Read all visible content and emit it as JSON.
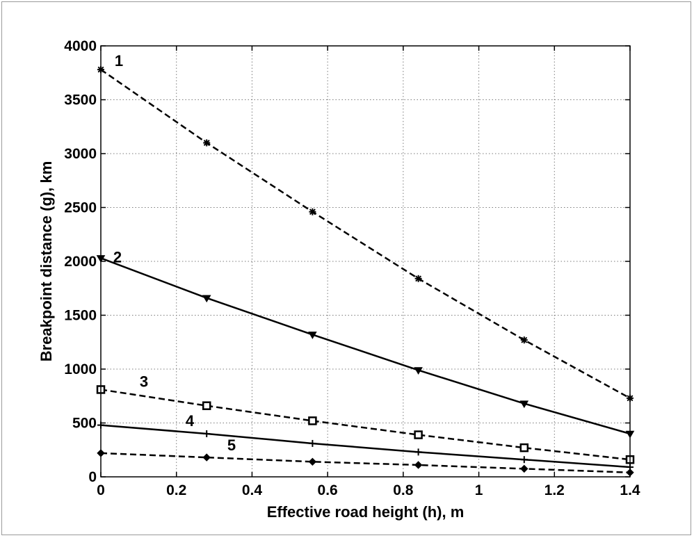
{
  "chart_data": {
    "type": "line",
    "title": "",
    "xlabel": "Effective road height (h), m",
    "ylabel": "Breakpoint distance (g), km",
    "xlim": [
      0,
      1.4
    ],
    "ylim": [
      0,
      4000
    ],
    "xticks": [
      "0",
      "0.2",
      "0.4",
      "0.6",
      "0.8",
      "1",
      "1.2",
      "1.4"
    ],
    "yticks": [
      "0",
      "500",
      "1000",
      "1500",
      "2000",
      "2500",
      "3000",
      "3500",
      "4000"
    ],
    "grid": true,
    "x": [
      0,
      0.28,
      0.56,
      0.84,
      1.12,
      1.4
    ],
    "series": [
      {
        "label": "1",
        "values": [
          3780,
          3100,
          2460,
          1840,
          1270,
          730
        ],
        "style": "dashed",
        "marker": "star"
      },
      {
        "label": "2",
        "values": [
          2030,
          1660,
          1320,
          990,
          680,
          400
        ],
        "style": "solid",
        "marker": "triangle-down"
      },
      {
        "label": "3",
        "values": [
          810,
          660,
          520,
          390,
          270,
          160
        ],
        "style": "dashed",
        "marker": "square"
      },
      {
        "label": "4",
        "values": [
          480,
          400,
          310,
          230,
          160,
          90
        ],
        "style": "solid",
        "marker": "plus"
      },
      {
        "label": "5",
        "values": [
          220,
          180,
          140,
          110,
          75,
          40
        ],
        "style": "dashed",
        "marker": "diamond"
      }
    ],
    "line_color": "#000000",
    "grid_color": "#7a7a7a"
  }
}
